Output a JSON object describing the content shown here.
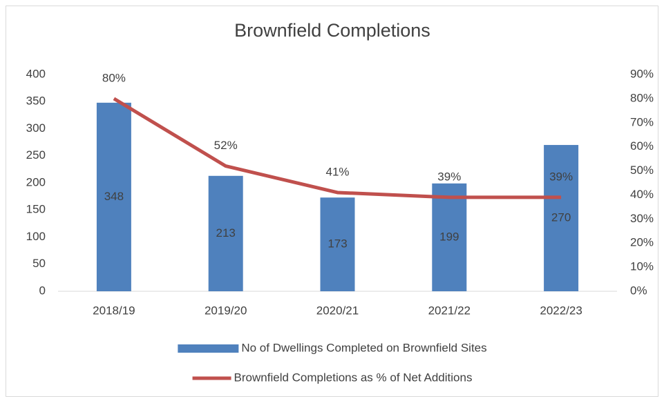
{
  "chart_data": {
    "type": "bar",
    "title": "Brownfield Completions",
    "categories": [
      "2018/19",
      "2019/20",
      "2020/21",
      "2021/22",
      "2022/23"
    ],
    "series": [
      {
        "name": "No of Dwellings Completed on Brownfield Sites",
        "type": "bar",
        "color": "#4f81bd",
        "values": [
          348,
          213,
          173,
          199,
          270
        ]
      },
      {
        "name": "Brownfield Completions as % of Net Additions",
        "type": "line",
        "axis": "y2",
        "color": "#c0504d",
        "values": [
          80,
          52,
          41,
          39,
          39
        ],
        "value_labels": [
          "80%",
          "52%",
          "41%",
          "39%",
          "39%"
        ]
      }
    ],
    "ylim": [
      0,
      400
    ],
    "yticks": [
      0,
      50,
      100,
      150,
      200,
      250,
      300,
      350,
      400
    ],
    "y2lim": [
      0,
      90
    ],
    "y2ticks": [
      {
        "value": 0,
        "label": "0%"
      },
      {
        "value": 10,
        "label": "10%"
      },
      {
        "value": 20,
        "label": "20%"
      },
      {
        "value": 30,
        "label": "30%"
      },
      {
        "value": 40,
        "label": "40%"
      },
      {
        "value": 50,
        "label": "50%"
      },
      {
        "value": 60,
        "label": "60%"
      },
      {
        "value": 70,
        "label": "70%"
      },
      {
        "value": 80,
        "label": "80%"
      },
      {
        "value": 90,
        "label": "90%"
      }
    ],
    "grid": false,
    "legend": "bottom"
  }
}
